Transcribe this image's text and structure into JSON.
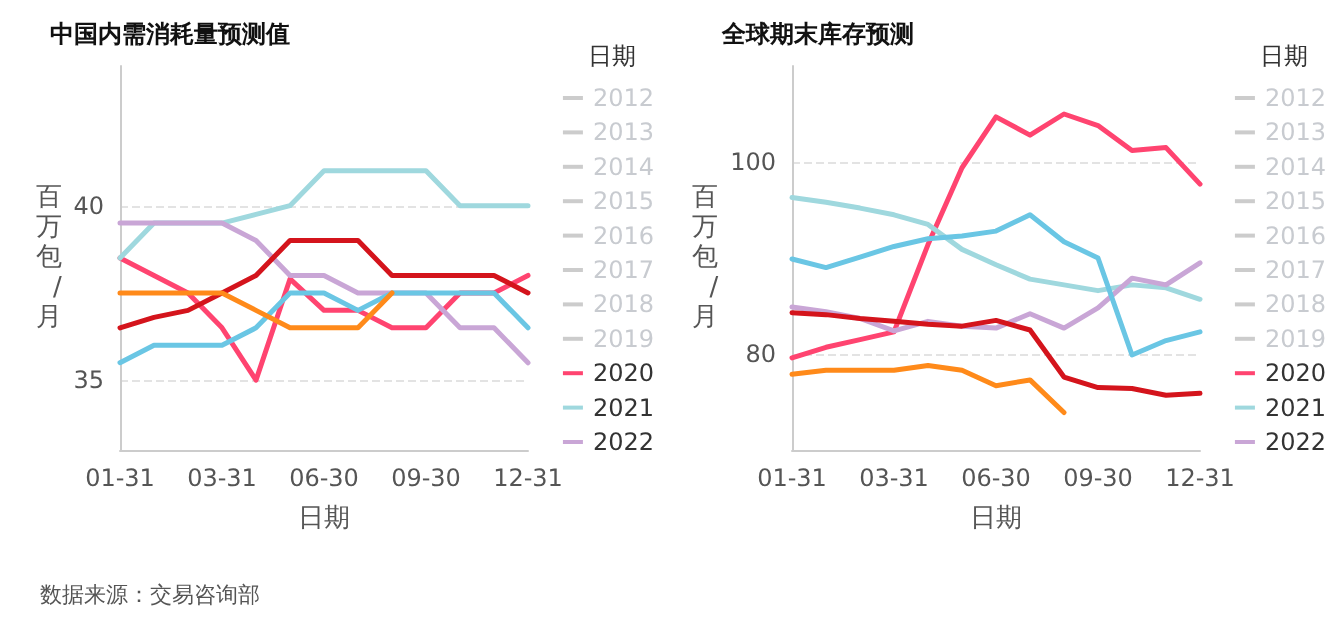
{
  "chart_data": [
    {
      "type": "line",
      "title": "中国内需消耗量预测值",
      "xlabel": "日期",
      "ylabel": "百万包/月",
      "legend_title": "日期",
      "legend": "right",
      "grid": "y",
      "marker": "none",
      "line_style": "solid",
      "ylim": [
        33,
        44
      ],
      "yticks": [
        35,
        40
      ],
      "categories": [
        "01-31",
        null,
        null,
        "03-31",
        null,
        null,
        "06-30",
        null,
        null,
        "09-30",
        null,
        null,
        "12-31"
      ],
      "annotations": [
        "数据来源：交易咨询部"
      ],
      "series": [
        {
          "name": "2012",
          "color": "#cccccc",
          "values": [
            null,
            null,
            null,
            null,
            null,
            null,
            null,
            null,
            null,
            null,
            null,
            null,
            null
          ]
        },
        {
          "name": "2013",
          "color": "#cccccc",
          "values": [
            null,
            null,
            null,
            null,
            null,
            null,
            null,
            null,
            null,
            null,
            null,
            null,
            null
          ]
        },
        {
          "name": "2014",
          "color": "#cccccc",
          "values": [
            null,
            null,
            null,
            null,
            null,
            null,
            null,
            null,
            null,
            null,
            null,
            null,
            null
          ]
        },
        {
          "name": "2015",
          "color": "#cccccc",
          "values": [
            null,
            null,
            null,
            null,
            null,
            null,
            null,
            null,
            null,
            null,
            null,
            null,
            null
          ]
        },
        {
          "name": "2016",
          "color": "#cccccc",
          "values": [
            null,
            null,
            null,
            null,
            null,
            null,
            null,
            null,
            null,
            null,
            null,
            null,
            null
          ]
        },
        {
          "name": "2017",
          "color": "#cccccc",
          "values": [
            null,
            null,
            null,
            null,
            null,
            null,
            null,
            null,
            null,
            null,
            null,
            null,
            null
          ]
        },
        {
          "name": "2018",
          "color": "#cccccc",
          "values": [
            null,
            null,
            null,
            null,
            null,
            null,
            null,
            null,
            null,
            null,
            null,
            null,
            null
          ]
        },
        {
          "name": "2019",
          "color": "#cccccc",
          "values": [
            null,
            null,
            null,
            null,
            null,
            null,
            null,
            null,
            null,
            null,
            null,
            null,
            null
          ]
        },
        {
          "name": "2020",
          "color": "#ff4470",
          "values": [
            38.5,
            38.0,
            37.5,
            36.5,
            35.0,
            37.9,
            37.0,
            37.0,
            36.5,
            36.5,
            37.5,
            37.5,
            38.0
          ]
        },
        {
          "name": "2021",
          "color": "#9fd8de",
          "values": [
            38.5,
            39.5,
            39.5,
            39.5,
            39.75,
            40.0,
            41.0,
            41.0,
            41.0,
            41.0,
            40.0,
            40.0,
            40.0
          ]
        },
        {
          "name": "2022",
          "color": "#c9a6d6",
          "values": [
            39.5,
            39.5,
            39.5,
            39.5,
            39.0,
            38.0,
            38.0,
            37.5,
            37.5,
            37.5,
            36.5,
            36.5,
            35.5
          ]
        },
        {
          "color": "#d4141c",
          "values": [
            36.5,
            36.8,
            37.0,
            37.5,
            38.0,
            39.0,
            39.0,
            39.0,
            38.0,
            38.0,
            38.0,
            38.0,
            37.5
          ]
        },
        {
          "color": "#6ac6e4",
          "values": [
            35.5,
            36.0,
            36.0,
            36.0,
            36.5,
            37.5,
            37.5,
            37.0,
            37.5,
            37.5,
            37.5,
            37.5,
            36.5
          ]
        },
        {
          "color": "#ff8a1a",
          "values": [
            37.5,
            37.5,
            37.5,
            37.5,
            37.0,
            36.5,
            36.5,
            36.5,
            37.5,
            null,
            null,
            null,
            null
          ]
        }
      ]
    },
    {
      "type": "line",
      "title": "全球期末库存预测",
      "xlabel": "日期",
      "ylabel": "百万包/月",
      "legend_title": "日期",
      "legend": "right",
      "grid": "y",
      "marker": "none",
      "line_style": "solid",
      "ylim": [
        70,
        110
      ],
      "yticks": [
        80,
        100
      ],
      "categories": [
        "01-31",
        null,
        null,
        "03-31",
        null,
        null,
        "06-30",
        null,
        null,
        "09-30",
        null,
        null,
        "12-31"
      ],
      "series": [
        {
          "name": "2012",
          "color": "#cccccc",
          "values": [
            null,
            null,
            null,
            null,
            null,
            null,
            null,
            null,
            null,
            null,
            null,
            null,
            null
          ]
        },
        {
          "name": "2013",
          "color": "#cccccc",
          "values": [
            null,
            null,
            null,
            null,
            null,
            null,
            null,
            null,
            null,
            null,
            null,
            null,
            null
          ]
        },
        {
          "name": "2014",
          "color": "#cccccc",
          "values": [
            null,
            null,
            null,
            null,
            null,
            null,
            null,
            null,
            null,
            null,
            null,
            null,
            null
          ]
        },
        {
          "name": "2015",
          "color": "#cccccc",
          "values": [
            null,
            null,
            null,
            null,
            null,
            null,
            null,
            null,
            null,
            null,
            null,
            null,
            null
          ]
        },
        {
          "name": "2016",
          "color": "#cccccc",
          "values": [
            null,
            null,
            null,
            null,
            null,
            null,
            null,
            null,
            null,
            null,
            null,
            null,
            null
          ]
        },
        {
          "name": "2017",
          "color": "#cccccc",
          "values": [
            null,
            null,
            null,
            null,
            null,
            null,
            null,
            null,
            null,
            null,
            null,
            null,
            null
          ]
        },
        {
          "name": "2018",
          "color": "#cccccc",
          "values": [
            null,
            null,
            null,
            null,
            null,
            null,
            null,
            null,
            null,
            null,
            null,
            null,
            null
          ]
        },
        {
          "name": "2019",
          "color": "#cccccc",
          "values": [
            null,
            null,
            null,
            null,
            null,
            null,
            null,
            null,
            null,
            null,
            null,
            null,
            null
          ]
        },
        {
          "name": "2020",
          "color": "#ff4470",
          "values": [
            79.6,
            80.7,
            81.5,
            82.3,
            91.4,
            99.4,
            104.7,
            102.8,
            105.0,
            103.8,
            101.2,
            101.5,
            97.7
          ]
        },
        {
          "name": "2021",
          "color": "#9fd8de",
          "values": [
            96.3,
            95.8,
            95.2,
            94.5,
            93.5,
            90.9,
            89.3,
            87.8,
            87.2,
            86.6,
            87.2,
            86.9,
            85.7
          ]
        },
        {
          "name": "2022",
          "color": "#c9a6d6",
          "values": [
            84.9,
            84.4,
            83.7,
            82.4,
            83.4,
            82.9,
            82.7,
            84.2,
            82.7,
            84.8,
            87.9,
            87.2,
            89.5
          ]
        },
        {
          "color": "#d4141c",
          "values": [
            84.3,
            84.1,
            83.7,
            83.4,
            83.1,
            82.9,
            83.5,
            82.5,
            77.6,
            76.5,
            76.4,
            75.7,
            75.9
          ]
        },
        {
          "color": "#6ac6e4",
          "values": [
            89.9,
            89.0,
            90.1,
            91.2,
            92.0,
            92.3,
            92.8,
            94.5,
            91.7,
            90.0,
            79.9,
            81.4,
            82.3
          ]
        },
        {
          "color": "#ff8a1a",
          "values": [
            77.9,
            78.3,
            78.3,
            78.3,
            78.8,
            78.3,
            76.7,
            77.3,
            73.9,
            null,
            null,
            null,
            null
          ]
        }
      ]
    }
  ]
}
